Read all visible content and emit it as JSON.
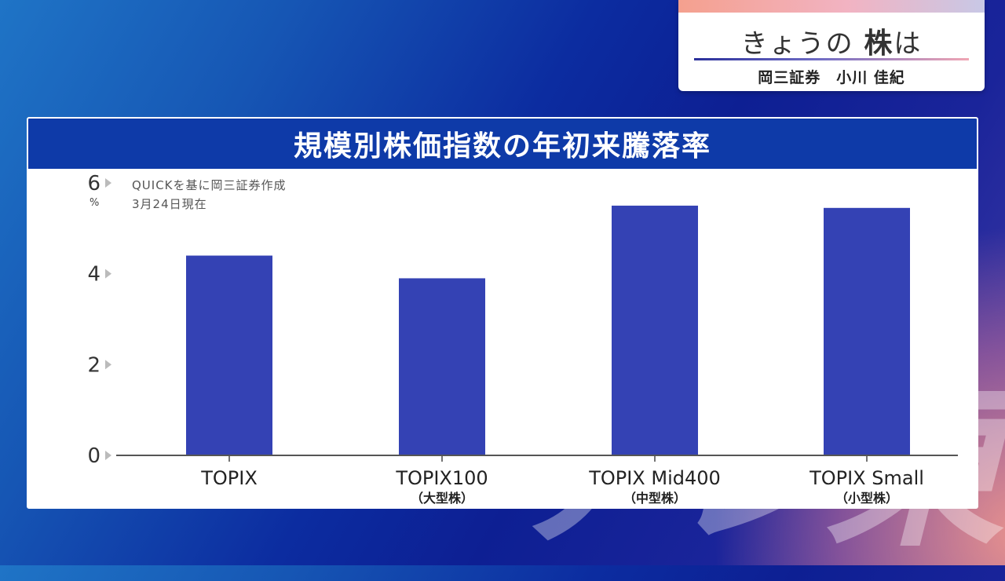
{
  "background_word": "テレ東",
  "title_card": {
    "program_prefix": "きょうの",
    "program_kanji": "株",
    "program_suffix": "は",
    "guest": "岡三証券　小川 佳紀"
  },
  "chart_data": {
    "type": "bar",
    "title": "規模別株価指数の年初来騰落率",
    "unit": "%",
    "source_note": "QUICKを基に岡三証券作成",
    "date_note": "3月24日現在",
    "categories": [
      "TOPIX",
      "TOPIX100",
      "TOPIX Mid400",
      "TOPIX Small"
    ],
    "sublabels": [
      "",
      "（大型株）",
      "（中型株）",
      "（小型株）"
    ],
    "values": [
      4.4,
      3.9,
      5.5,
      5.45
    ],
    "ylim": [
      0,
      6
    ],
    "yticks": [
      0,
      2,
      4,
      6
    ],
    "bar_color": "#3442b4",
    "grid": false
  }
}
